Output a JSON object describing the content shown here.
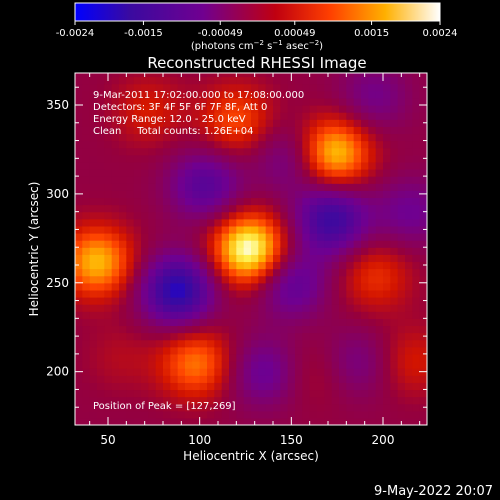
{
  "chart_data": {
    "type": "heatmap",
    "title": "Reconstructed RHESSI Image",
    "xlabel": "Heliocentric X (arcsec)",
    "ylabel": "Heliocentric Y (arcsec)",
    "xlim": [
      32,
      224
    ],
    "ylim": [
      170,
      368
    ],
    "xticks": [
      50,
      100,
      150,
      200
    ],
    "yticks": [
      200,
      250,
      300,
      350
    ],
    "colorbar": {
      "ticks": [
        "-0.0024",
        "-0.0015",
        "-0.00049",
        "0.00049",
        "0.0015",
        "0.0024"
      ],
      "tick_values": [
        -0.0024,
        -0.0015,
        -0.00049,
        0.00049,
        0.0015,
        0.0024
      ],
      "range": [
        -0.0024,
        0.0024
      ],
      "colormap": "rainbow-style blue-to-white (purple, red, orange, yellow, white)"
    },
    "annotations": [
      "9-Mar-2011 17:02:00.000 to 17:08:00.000",
      "Detectors: 3F 4F 5F 6F 7F 8F, Att 0",
      "Energy Range: 12.0 - 25.0 keV",
      "Clean     Total counts: 1.26E+04"
    ],
    "peak_label": "Position of Peak = [127,269]",
    "peak_position": [
      127,
      269
    ],
    "sources": [
      {
        "x": 127,
        "y": 269,
        "value": 0.0024
      },
      {
        "x": 173,
        "y": 323,
        "value": 0.0019
      },
      {
        "x": 44,
        "y": 262,
        "value": 0.0017
      },
      {
        "x": 98,
        "y": 205,
        "value": 0.0013
      },
      {
        "x": 196,
        "y": 254,
        "value": 0.0008
      },
      {
        "x": 120,
        "y": 342,
        "value": 0.001
      },
      {
        "x": 72,
        "y": 347,
        "value": 0.0006
      },
      {
        "x": 216,
        "y": 206,
        "value": 0.0006
      },
      {
        "x": 165,
        "y": 200,
        "value": 0.0004
      },
      {
        "x": 57,
        "y": 208,
        "value": 0.0003
      },
      {
        "x": 88,
        "y": 246,
        "value": -0.002
      },
      {
        "x": 172,
        "y": 286,
        "value": -0.0017
      },
      {
        "x": 150,
        "y": 250,
        "value": -0.0011
      },
      {
        "x": 103,
        "y": 305,
        "value": -0.0012
      },
      {
        "x": 215,
        "y": 290,
        "value": -0.0008
      },
      {
        "x": 150,
        "y": 320,
        "value": -0.0008
      },
      {
        "x": 195,
        "y": 355,
        "value": -0.0007
      },
      {
        "x": 185,
        "y": 205,
        "value": -0.0007
      },
      {
        "x": 135,
        "y": 200,
        "value": -0.0009
      }
    ]
  },
  "footer": {
    "timestamp": "9-May-2022 20:07"
  }
}
